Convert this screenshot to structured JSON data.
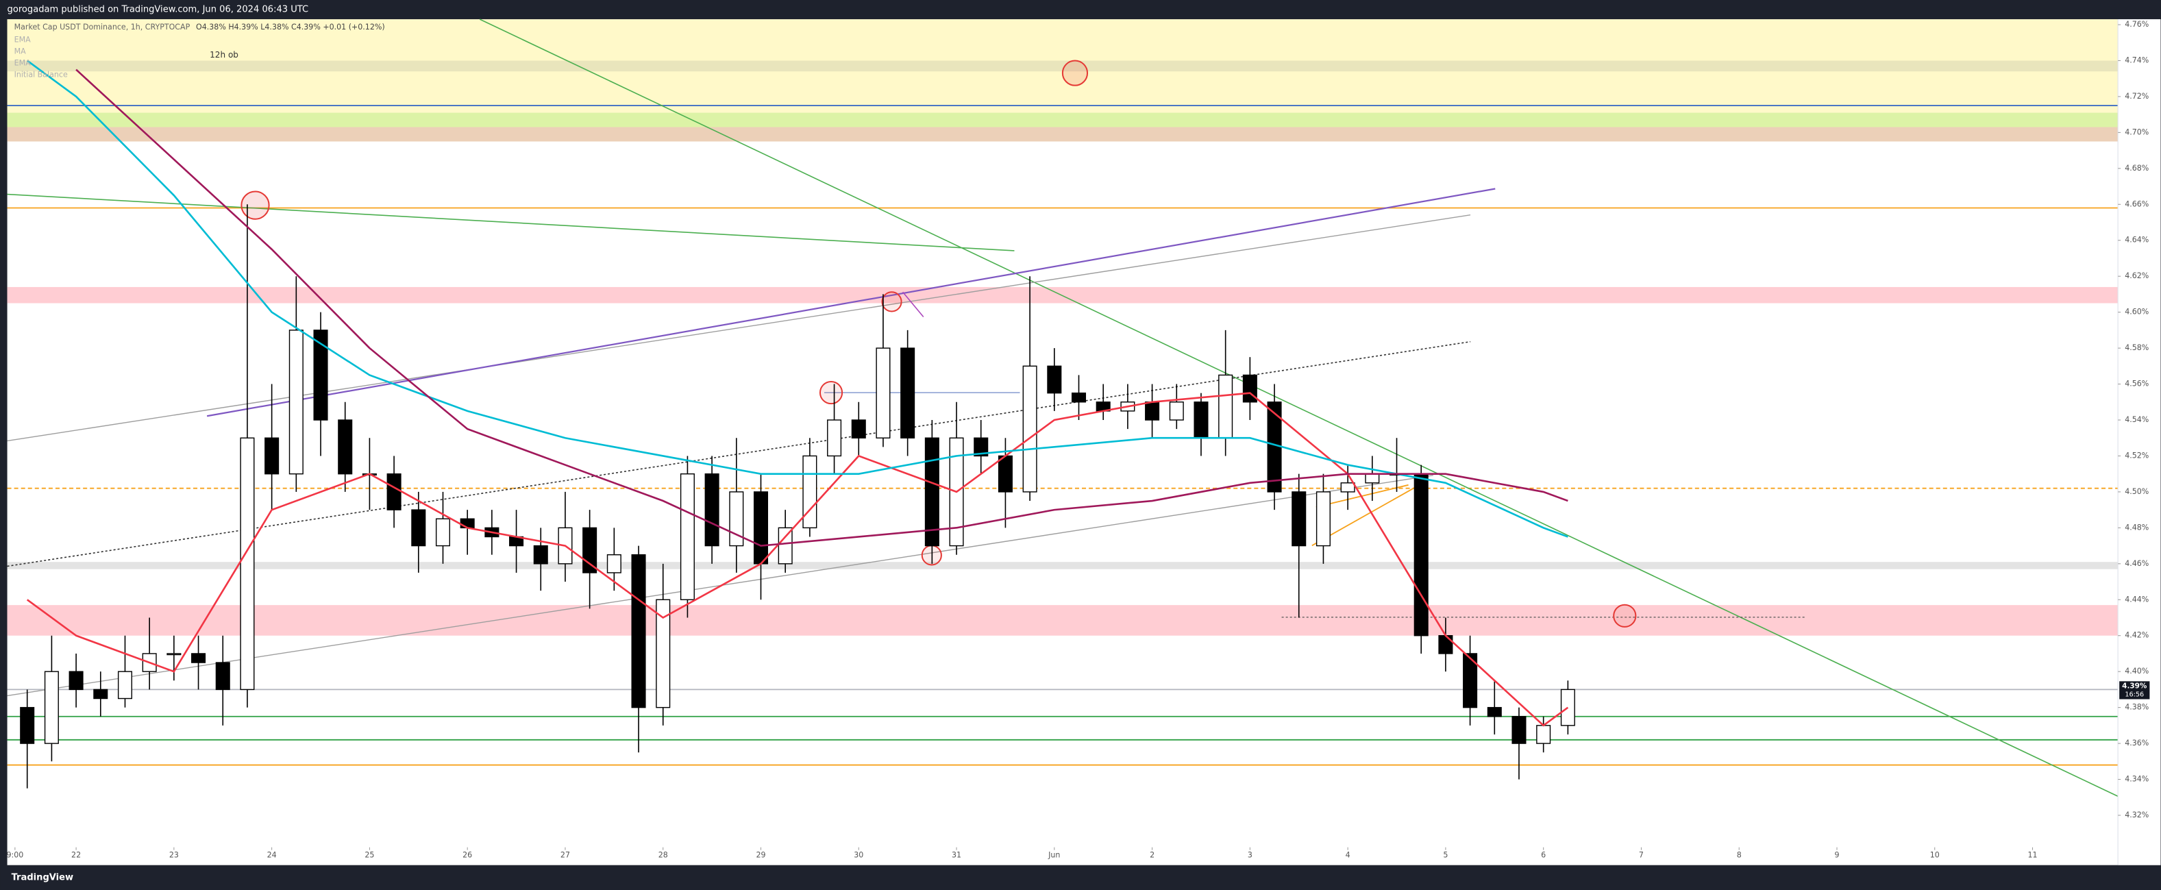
{
  "header": "gorogadam published on TradingView.com, Jun 06, 2024 06:43 UTC",
  "footer": "TradingView",
  "chart_data": {
    "type": "candlestick",
    "title": "Market Cap USDT Dominance, 1h, CRYPTOCAP",
    "ohlc_text": "O4.38% H4.39% L4.38% C4.39% +0.01 (+0.12%)",
    "indicator_labels": [
      "EMA",
      "MA",
      "EMA",
      "Initial Balance"
    ],
    "x": [
      "2024-05-21T12:00",
      "2024-05-21T18:00",
      "2024-05-22T00:00",
      "2024-05-22T06:00",
      "2024-05-22T12:00",
      "2024-05-22T18:00",
      "2024-05-23T00:00",
      "2024-05-23T06:00",
      "2024-05-23T12:00",
      "2024-05-23T18:00",
      "2024-05-24T00:00",
      "2024-05-24T06:00",
      "2024-05-24T12:00",
      "2024-05-24T18:00",
      "2024-05-25T00:00",
      "2024-05-25T06:00",
      "2024-05-25T12:00",
      "2024-05-25T18:00",
      "2024-05-26T00:00",
      "2024-05-26T06:00",
      "2024-05-26T12:00",
      "2024-05-26T18:00",
      "2024-05-27T00:00",
      "2024-05-27T06:00",
      "2024-05-27T12:00",
      "2024-05-27T18:00",
      "2024-05-28T00:00",
      "2024-05-28T06:00",
      "2024-05-28T12:00",
      "2024-05-28T18:00",
      "2024-05-29T00:00",
      "2024-05-29T06:00",
      "2024-05-29T12:00",
      "2024-05-29T18:00",
      "2024-05-30T00:00",
      "2024-05-30T06:00",
      "2024-05-30T12:00",
      "2024-05-30T18:00",
      "2024-05-31T00:00",
      "2024-05-31T06:00",
      "2024-05-31T12:00",
      "2024-05-31T18:00",
      "2024-06-01T00:00",
      "2024-06-01T06:00",
      "2024-06-01T12:00",
      "2024-06-01T18:00",
      "2024-06-02T00:00",
      "2024-06-02T06:00",
      "2024-06-02T12:00",
      "2024-06-02T18:00",
      "2024-06-03T00:00",
      "2024-06-03T06:00",
      "2024-06-03T12:00",
      "2024-06-03T18:00",
      "2024-06-04T00:00",
      "2024-06-04T06:00",
      "2024-06-04T12:00",
      "2024-06-04T18:00",
      "2024-06-05T00:00",
      "2024-06-05T06:00",
      "2024-06-05T12:00",
      "2024-06-05T18:00",
      "2024-06-06T00:00",
      "2024-06-06T06:00"
    ],
    "open": [
      4.38,
      4.36,
      4.4,
      4.39,
      4.385,
      4.4,
      4.41,
      4.41,
      4.405,
      4.39,
      4.53,
      4.51,
      4.59,
      4.54,
      4.51,
      4.51,
      4.49,
      4.47,
      4.485,
      4.48,
      4.475,
      4.47,
      4.46,
      4.48,
      4.455,
      4.465,
      4.38,
      4.44,
      4.51,
      4.47,
      4.5,
      4.46,
      4.48,
      4.52,
      4.54,
      4.53,
      4.58,
      4.53,
      4.47,
      4.53,
      4.52,
      4.5,
      4.57,
      4.555,
      4.55,
      4.545,
      4.55,
      4.54,
      4.55,
      4.53,
      4.565,
      4.55,
      4.5,
      4.47,
      4.5,
      4.505,
      4.51,
      4.51,
      4.42,
      4.41,
      4.38,
      4.375,
      4.36,
      4.37
    ],
    "high": [
      4.39,
      4.42,
      4.41,
      4.4,
      4.42,
      4.43,
      4.42,
      4.42,
      4.42,
      4.66,
      4.56,
      4.62,
      4.6,
      4.55,
      4.53,
      4.52,
      4.5,
      4.5,
      4.49,
      4.49,
      4.49,
      4.48,
      4.5,
      4.49,
      4.48,
      4.47,
      4.46,
      4.52,
      4.52,
      4.53,
      4.51,
      4.49,
      4.53,
      4.56,
      4.55,
      4.61,
      4.59,
      4.54,
      4.55,
      4.54,
      4.53,
      4.62,
      4.58,
      4.565,
      4.56,
      4.56,
      4.56,
      4.56,
      4.555,
      4.59,
      4.575,
      4.56,
      4.51,
      4.51,
      4.515,
      4.52,
      4.53,
      4.515,
      4.43,
      4.42,
      4.395,
      4.38,
      4.375,
      4.395
    ],
    "low": [
      4.335,
      4.35,
      4.38,
      4.375,
      4.38,
      4.39,
      4.395,
      4.39,
      4.37,
      4.38,
      4.49,
      4.5,
      4.52,
      4.5,
      4.49,
      4.48,
      4.455,
      4.46,
      4.465,
      4.465,
      4.455,
      4.445,
      4.45,
      4.435,
      4.445,
      4.355,
      4.37,
      4.43,
      4.46,
      4.455,
      4.44,
      4.455,
      4.475,
      4.51,
      4.52,
      4.525,
      4.52,
      4.46,
      4.465,
      4.51,
      4.48,
      4.495,
      4.545,
      4.54,
      4.54,
      4.535,
      4.53,
      4.535,
      4.52,
      4.52,
      4.54,
      4.49,
      4.43,
      4.46,
      4.49,
      4.495,
      4.5,
      4.41,
      4.4,
      4.37,
      4.365,
      4.34,
      4.355,
      4.365
    ],
    "close": [
      4.36,
      4.4,
      4.39,
      4.385,
      4.4,
      4.41,
      4.41,
      4.405,
      4.39,
      4.53,
      4.51,
      4.59,
      4.54,
      4.51,
      4.51,
      4.49,
      4.47,
      4.485,
      4.48,
      4.475,
      4.47,
      4.46,
      4.48,
      4.455,
      4.465,
      4.38,
      4.44,
      4.51,
      4.47,
      4.5,
      4.46,
      4.48,
      4.52,
      4.54,
      4.53,
      4.58,
      4.53,
      4.47,
      4.53,
      4.52,
      4.5,
      4.57,
      4.555,
      4.55,
      4.545,
      4.55,
      4.54,
      4.55,
      4.53,
      4.565,
      4.55,
      4.5,
      4.47,
      4.5,
      4.505,
      4.51,
      4.51,
      4.42,
      4.41,
      4.38,
      4.375,
      4.36,
      4.37,
      4.39
    ],
    "up_color": "#ffffff",
    "down_color": "#000000",
    "overlays": [
      {
        "color": "#f23645",
        "x": [
          "2024-05-21T12:00",
          "2024-05-22T00:00",
          "2024-05-23T00:00",
          "2024-05-24T00:00",
          "2024-05-25T00:00",
          "2024-05-26T00:00",
          "2024-05-27T00:00",
          "2024-05-28T00:00",
          "2024-05-29T00:00",
          "2024-05-30T00:00",
          "2024-05-31T00:00",
          "2024-06-01T00:00",
          "2024-06-02T00:00",
          "2024-06-03T00:00",
          "2024-06-04T00:00",
          "2024-06-05T00:00",
          "2024-06-06T00:00",
          "2024-06-06T06:00"
        ],
        "values": [
          4.44,
          4.42,
          4.4,
          4.49,
          4.51,
          4.48,
          4.47,
          4.43,
          4.46,
          4.52,
          4.5,
          4.54,
          4.55,
          4.555,
          4.51,
          4.42,
          4.37,
          4.38
        ]
      },
      {
        "color": "#00bcd4",
        "x": [
          "2024-05-21T12:00",
          "2024-05-22T00:00",
          "2024-05-23T00:00",
          "2024-05-24T00:00",
          "2024-05-25T00:00",
          "2024-05-26T00:00",
          "2024-05-27T00:00",
          "2024-05-28T00:00",
          "2024-05-29T00:00",
          "2024-05-30T00:00",
          "2024-05-31T00:00",
          "2024-06-01T00:00",
          "2024-06-02T00:00",
          "2024-06-03T00:00",
          "2024-06-04T00:00",
          "2024-06-05T00:00",
          "2024-06-06T00:00",
          "2024-06-06T06:00"
        ],
        "values": [
          4.74,
          4.72,
          4.665,
          4.6,
          4.565,
          4.545,
          4.53,
          4.52,
          4.51,
          4.51,
          4.52,
          4.525,
          4.53,
          4.53,
          4.515,
          4.505,
          4.48,
          4.475
        ]
      },
      {
        "color": "#a0185a",
        "x": [
          "2024-05-21T12:00",
          "2024-05-22T00:00",
          "2024-05-23T00:00",
          "2024-05-24T00:00",
          "2024-05-25T00:00",
          "2024-05-26T00:00",
          "2024-05-27T00:00",
          "2024-05-28T00:00",
          "2024-05-29T00:00",
          "2024-05-30T00:00",
          "2024-05-31T00:00",
          "2024-06-01T00:00",
          "2024-06-02T00:00",
          "2024-06-03T00:00",
          "2024-06-04T00:00",
          "2024-06-05T00:00",
          "2024-06-06T00:00",
          "2024-06-06T06:00"
        ],
        "values": [
          null,
          4.735,
          4.685,
          4.635,
          4.58,
          4.535,
          4.515,
          4.495,
          4.47,
          4.475,
          4.48,
          4.49,
          4.495,
          4.505,
          4.51,
          4.51,
          4.5,
          4.495
        ]
      }
    ],
    "zones": [
      {
        "from": 4.711,
        "to": 4.763,
        "color": "#fff9c9"
      },
      {
        "from": 4.734,
        "to": 4.74,
        "color": "#e9e5bc",
        "label": "12h ob"
      },
      {
        "from": 4.703,
        "to": 4.711,
        "color": "#dcf3a6"
      },
      {
        "from": 4.695,
        "to": 4.703,
        "color": "#ecd0b8"
      },
      {
        "from": 4.605,
        "to": 4.614,
        "color": "#ffcdd3"
      },
      {
        "from": 4.457,
        "to": 4.461,
        "color": "#e3e3e3"
      },
      {
        "from": 4.42,
        "to": 4.437,
        "color": "#ffcdd3"
      }
    ],
    "levels": [
      {
        "value": 4.715,
        "color": "#3f6fc4",
        "dash": false
      },
      {
        "value": 4.658,
        "color": "#f7a21b",
        "dash": false
      },
      {
        "value": 4.502,
        "color": "#f7a21b",
        "dash": true
      },
      {
        "value": 4.39,
        "color": "#b2b5be",
        "dash": false
      },
      {
        "value": 4.375,
        "color": "#2ea043",
        "dash": false
      },
      {
        "value": 4.362,
        "color": "#2ea043",
        "dash": false
      },
      {
        "value": 4.348,
        "color": "#f7a21b",
        "dash": false
      }
    ],
    "last_price": {
      "value": 4.39,
      "label": "4.39%",
      "countdown": "16:56"
    },
    "xlim": [
      "2024-05-21T07:06",
      "2024-06-11T20:57"
    ],
    "ylim": [
      4.293,
      4.763
    ],
    "xticks": [
      {
        "value": "2024-05-21T09:00",
        "label": "9:00"
      },
      {
        "value": "2024-05-22T00:00",
        "label": "22"
      },
      {
        "value": "2024-05-23T00:00",
        "label": "23"
      },
      {
        "value": "2024-05-24T00:00",
        "label": "24"
      },
      {
        "value": "2024-05-25T00:00",
        "label": "25"
      },
      {
        "value": "2024-05-26T00:00",
        "label": "26"
      },
      {
        "value": "2024-05-27T00:00",
        "label": "27"
      },
      {
        "value": "2024-05-28T00:00",
        "label": "28"
      },
      {
        "value": "2024-05-29T00:00",
        "label": "29"
      },
      {
        "value": "2024-05-30T00:00",
        "label": "30"
      },
      {
        "value": "2024-05-31T00:00",
        "label": "31"
      },
      {
        "value": "2024-06-01T00:00",
        "label": "Jun"
      },
      {
        "value": "2024-06-02T00:00",
        "label": "2"
      },
      {
        "value": "2024-06-03T00:00",
        "label": "3"
      },
      {
        "value": "2024-06-04T00:00",
        "label": "4"
      },
      {
        "value": "2024-06-05T00:00",
        "label": "5"
      },
      {
        "value": "2024-06-06T00:00",
        "label": "6"
      },
      {
        "value": "2024-06-07T00:00",
        "label": "7"
      },
      {
        "value": "2024-06-08T00:00",
        "label": "8"
      },
      {
        "value": "2024-06-09T00:00",
        "label": "9"
      },
      {
        "value": "2024-06-10T00:00",
        "label": "10"
      },
      {
        "value": "2024-06-11T00:00",
        "label": "11"
      }
    ],
    "yticks": [
      {
        "value": 4.76,
        "label": "4.76%"
      },
      {
        "value": 4.74,
        "label": "4.74%"
      },
      {
        "value": 4.72,
        "label": "4.72%"
      },
      {
        "value": 4.7,
        "label": "4.70%"
      },
      {
        "value": 4.68,
        "label": "4.68%"
      },
      {
        "value": 4.66,
        "label": "4.66%"
      },
      {
        "value": 4.64,
        "label": "4.64%"
      },
      {
        "value": 4.62,
        "label": "4.62%"
      },
      {
        "value": 4.6,
        "label": "4.60%"
      },
      {
        "value": 4.58,
        "label": "4.58%"
      },
      {
        "value": 4.56,
        "label": "4.56%"
      },
      {
        "value": 4.54,
        "label": "4.54%"
      },
      {
        "value": 4.52,
        "label": "4.52%"
      },
      {
        "value": 4.5,
        "label": "4.50%"
      },
      {
        "value": 4.48,
        "label": "4.48%"
      },
      {
        "value": 4.46,
        "label": "4.46%"
      },
      {
        "value": 4.44,
        "label": "4.44%"
      },
      {
        "value": 4.42,
        "label": "4.42%"
      },
      {
        "value": 4.4,
        "label": "4.40%"
      },
      {
        "value": 4.38,
        "label": "4.38%"
      },
      {
        "value": 4.36,
        "label": "4.36%"
      },
      {
        "value": 4.34,
        "label": "4.34%"
      },
      {
        "value": 4.32,
        "label": "4.32%"
      }
    ]
  }
}
